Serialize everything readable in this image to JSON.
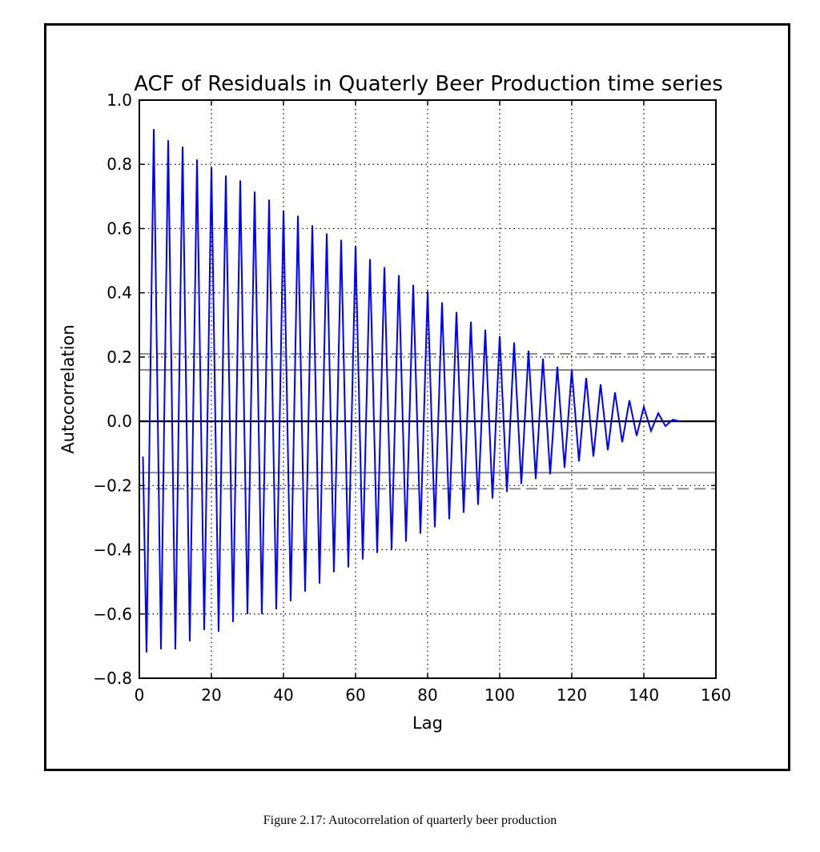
{
  "caption": "Figure 2.17: Autocorrelation of quarterly beer production",
  "chart_data": {
    "type": "line",
    "title": "ACF of Residuals in Quaterly Beer Production time series",
    "xlabel": "Lag",
    "ylabel": "Autocorrelation",
    "xlim": [
      0,
      160
    ],
    "ylim": [
      -0.8,
      1.0
    ],
    "xticks": [
      0,
      20,
      40,
      60,
      80,
      100,
      120,
      140,
      160
    ],
    "xtick_labels": [
      "0",
      "20",
      "40",
      "60",
      "80",
      "100",
      "120",
      "140",
      "160"
    ],
    "yticks": [
      -0.8,
      -0.6,
      -0.4,
      -0.2,
      0.0,
      0.2,
      0.4,
      0.6,
      0.8,
      1.0
    ],
    "ytick_labels": [
      "−0.8",
      "−0.6",
      "−0.4",
      "−0.2",
      "0.0",
      "0.2",
      "0.4",
      "0.6",
      "0.8",
      "1.0"
    ],
    "grid": true,
    "line_color": "#0000ff",
    "reference_lines": [
      {
        "y": 0.0,
        "style": "solid",
        "color": "#000000"
      },
      {
        "y": 0.16,
        "style": "solid",
        "color": "#808080"
      },
      {
        "y": -0.16,
        "style": "solid",
        "color": "#808080"
      },
      {
        "y": 0.21,
        "style": "dashed",
        "color": "#808080"
      },
      {
        "y": -0.21,
        "style": "dashed",
        "color": "#808080"
      }
    ],
    "series": [
      {
        "x": [
          1,
          2,
          4,
          6,
          8,
          10,
          12,
          14,
          16,
          18,
          20,
          22,
          24,
          26,
          28,
          30,
          32,
          34,
          36,
          38,
          40,
          42,
          44,
          46,
          48,
          50,
          52,
          54,
          56,
          58,
          60,
          62,
          64,
          66,
          68,
          70,
          72,
          74,
          76,
          78,
          80,
          82,
          84,
          86,
          88,
          90,
          92,
          94,
          96,
          98,
          100,
          102,
          104,
          106,
          108,
          110,
          112,
          114,
          116,
          118,
          120,
          122,
          124,
          126,
          128,
          130,
          132,
          134,
          136,
          138,
          140,
          142,
          144,
          146,
          148,
          150
        ],
        "y": [
          -0.11,
          -0.72,
          0.91,
          -0.71,
          0.875,
          -0.71,
          0.855,
          -0.685,
          0.815,
          -0.65,
          0.79,
          -0.655,
          0.765,
          -0.625,
          0.75,
          -0.6,
          0.715,
          -0.6,
          0.69,
          -0.585,
          0.655,
          -0.56,
          0.64,
          -0.53,
          0.61,
          -0.505,
          0.585,
          -0.47,
          0.565,
          -0.455,
          0.545,
          -0.43,
          0.505,
          -0.41,
          0.48,
          -0.4,
          0.455,
          -0.375,
          0.425,
          -0.35,
          0.405,
          -0.33,
          0.37,
          -0.305,
          0.34,
          -0.285,
          0.31,
          -0.26,
          0.285,
          -0.24,
          0.265,
          -0.22,
          0.245,
          -0.195,
          0.22,
          -0.18,
          0.195,
          -0.165,
          0.17,
          -0.145,
          0.16,
          -0.125,
          0.135,
          -0.11,
          0.115,
          -0.09,
          0.09,
          -0.065,
          0.065,
          -0.045,
          0.045,
          -0.03,
          0.025,
          -0.015,
          0.005,
          0.0
        ]
      }
    ]
  }
}
